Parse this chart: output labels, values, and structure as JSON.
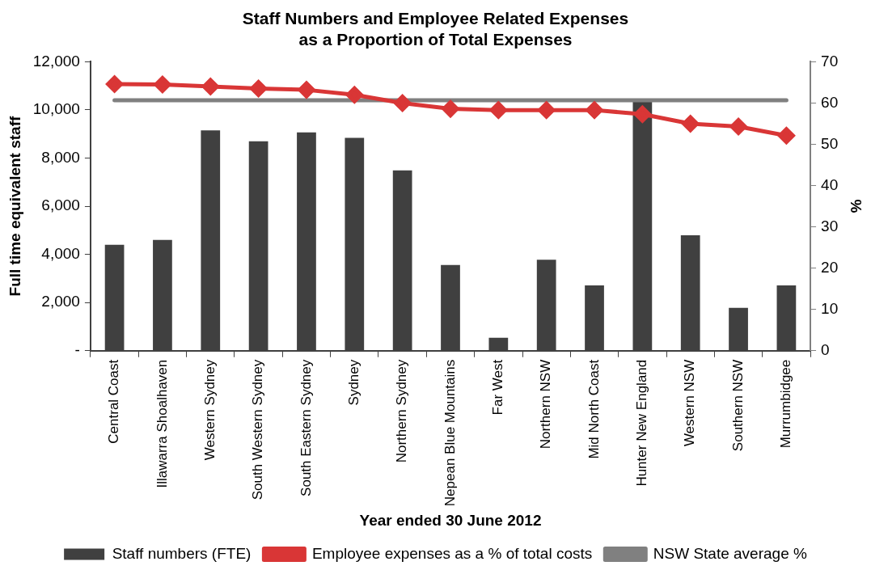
{
  "chart_data": {
    "type": "bar",
    "title": "Staff Numbers and Employee Related Expenses\nas a Proportion of Total Expenses",
    "xlabel": "Year ended 30 June 2012",
    "ylabel": "Full time equivalent staff",
    "y2label": "%",
    "categories": [
      "Central Coast",
      "Illawarra Shoalhaven",
      "Western Sydney",
      "South Western Sydney",
      "South Eastern Sydney",
      "Sydney",
      "Northern Sydney",
      "Nepean Blue Mountains",
      "Far West",
      "Northern NSW",
      "Mid North Coast",
      "Hunter New England",
      "Western NSW",
      "Southern NSW",
      "Murrumbidgee"
    ],
    "series": [
      {
        "name": "Staff numbers (FTE)",
        "color": "#404040",
        "values": [
          4400,
          4600,
          9150,
          8700,
          9070,
          8840,
          7490,
          3560,
          540,
          3780,
          2710,
          10400,
          4790,
          1780,
          2710
        ]
      },
      {
        "name": "Employee expenses as a % of total costs",
        "type": "line",
        "axis": "y2",
        "color": "#d93636",
        "marker": "diamond",
        "values": [
          64.6,
          64.5,
          64.0,
          63.5,
          63.2,
          62.0,
          60.0,
          58.6,
          58.3,
          58.3,
          58.3,
          57.3,
          55.0,
          54.3,
          52.1
        ]
      },
      {
        "name": "NSW State average %",
        "type": "line",
        "axis": "y2",
        "color": "#808080",
        "marker": "none",
        "values": [
          60.7,
          60.7,
          60.7,
          60.7,
          60.7,
          60.7,
          60.7,
          60.7,
          60.7,
          60.7,
          60.7,
          60.7,
          60.7,
          60.7,
          60.7
        ]
      }
    ],
    "ylim": [
      0,
      12000
    ],
    "yticks": [
      {
        "value": 0,
        "label": "-"
      },
      {
        "value": 2000,
        "label": "2,000"
      },
      {
        "value": 4000,
        "label": "4,000"
      },
      {
        "value": 6000,
        "label": "6,000"
      },
      {
        "value": 8000,
        "label": "8,000"
      },
      {
        "value": 10000,
        "label": "10,000"
      },
      {
        "value": 12000,
        "label": "12,000"
      }
    ],
    "y2lim": [
      0,
      70
    ],
    "y2ticks": [
      0,
      10,
      20,
      30,
      40,
      50,
      60,
      70
    ],
    "grid": false,
    "legend": "bottom"
  }
}
